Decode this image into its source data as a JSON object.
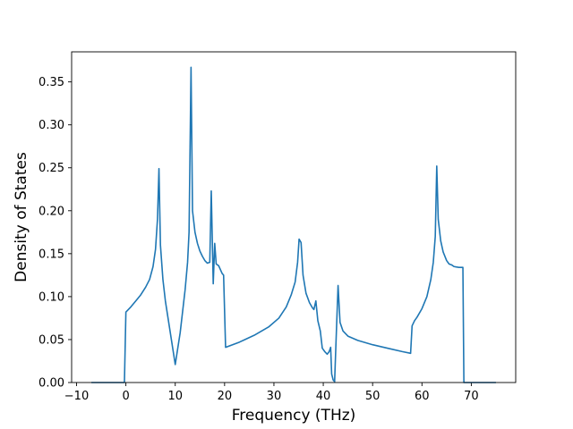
{
  "chart_data": {
    "type": "line",
    "title": "",
    "xlabel": "Frequency (THz)",
    "ylabel": "Density of States",
    "xlim": [
      -11,
      79
    ],
    "ylim": [
      0,
      0.385
    ],
    "grid": false,
    "xticks": [
      -10,
      0,
      10,
      20,
      30,
      40,
      50,
      60,
      70
    ],
    "xtick_labels": [
      "−10",
      "0",
      "10",
      "20",
      "30",
      "40",
      "50",
      "60",
      "70"
    ],
    "yticks": [
      0.0,
      0.05,
      0.1,
      0.15,
      0.2,
      0.25,
      0.3,
      0.35
    ],
    "ytick_labels": [
      "0.00",
      "0.05",
      "0.10",
      "0.15",
      "0.20",
      "0.25",
      "0.30",
      "0.35"
    ],
    "colors": {
      "series": "#1f77b4",
      "axes": "#000000",
      "background": "#ffffff"
    },
    "series": [
      {
        "points": [
          [
            -7,
            0
          ],
          [
            -0.3,
            0
          ],
          [
            0,
            0.082
          ],
          [
            1,
            0.088
          ],
          [
            2,
            0.095
          ],
          [
            3,
            0.102
          ],
          [
            4,
            0.111
          ],
          [
            4.8,
            0.12
          ],
          [
            5.5,
            0.135
          ],
          [
            6,
            0.155
          ],
          [
            6.4,
            0.19
          ],
          [
            6.7,
            0.249
          ],
          [
            7,
            0.16
          ],
          [
            7.5,
            0.12
          ],
          [
            8,
            0.095
          ],
          [
            9,
            0.058
          ],
          [
            10,
            0.021
          ],
          [
            11,
            0.058
          ],
          [
            12,
            0.108
          ],
          [
            12.5,
            0.14
          ],
          [
            12.8,
            0.175
          ],
          [
            13.2,
            0.367
          ],
          [
            13.5,
            0.2
          ],
          [
            14,
            0.175
          ],
          [
            14.5,
            0.162
          ],
          [
            15,
            0.153
          ],
          [
            15.5,
            0.147
          ],
          [
            16,
            0.142
          ],
          [
            16.5,
            0.139
          ],
          [
            17,
            0.14
          ],
          [
            17.3,
            0.223
          ],
          [
            17.7,
            0.115
          ],
          [
            18,
            0.162
          ],
          [
            18.3,
            0.138
          ],
          [
            18.8,
            0.136
          ],
          [
            19.5,
            0.127
          ],
          [
            19.8,
            0.125
          ],
          [
            20.2,
            0.041
          ],
          [
            23,
            0.047
          ],
          [
            26,
            0.055
          ],
          [
            29,
            0.065
          ],
          [
            31,
            0.075
          ],
          [
            32.5,
            0.088
          ],
          [
            33.5,
            0.102
          ],
          [
            34.3,
            0.117
          ],
          [
            34.8,
            0.14
          ],
          [
            35.1,
            0.167
          ],
          [
            35.5,
            0.163
          ],
          [
            35.9,
            0.125
          ],
          [
            36.5,
            0.104
          ],
          [
            37.2,
            0.093
          ],
          [
            37.8,
            0.087
          ],
          [
            38.1,
            0.085
          ],
          [
            38.5,
            0.095
          ],
          [
            38.9,
            0.072
          ],
          [
            39.4,
            0.06
          ],
          [
            39.8,
            0.04
          ],
          [
            40.3,
            0.036
          ],
          [
            40.8,
            0.033
          ],
          [
            41.2,
            0.036
          ],
          [
            41.5,
            0.041
          ],
          [
            41.7,
            0.01
          ],
          [
            42,
            0.003
          ],
          [
            42.3,
            0.001
          ],
          [
            42.6,
            0.05
          ],
          [
            43,
            0.113
          ],
          [
            43.4,
            0.07
          ],
          [
            44,
            0.06
          ],
          [
            45,
            0.054
          ],
          [
            47,
            0.049
          ],
          [
            50,
            0.044
          ],
          [
            53,
            0.04
          ],
          [
            56,
            0.036
          ],
          [
            57.7,
            0.034
          ],
          [
            58,
            0.066
          ],
          [
            58.5,
            0.072
          ],
          [
            59,
            0.076
          ],
          [
            60,
            0.086
          ],
          [
            61,
            0.1
          ],
          [
            61.8,
            0.12
          ],
          [
            62.3,
            0.14
          ],
          [
            62.7,
            0.17
          ],
          [
            63,
            0.252
          ],
          [
            63.3,
            0.19
          ],
          [
            63.8,
            0.165
          ],
          [
            64.3,
            0.152
          ],
          [
            65,
            0.142
          ],
          [
            65.5,
            0.138
          ],
          [
            66,
            0.137
          ],
          [
            66.5,
            0.135
          ],
          [
            67.5,
            0.134
          ],
          [
            68.3,
            0.134
          ],
          [
            68.5,
            0
          ],
          [
            75,
            0
          ]
        ]
      }
    ]
  }
}
